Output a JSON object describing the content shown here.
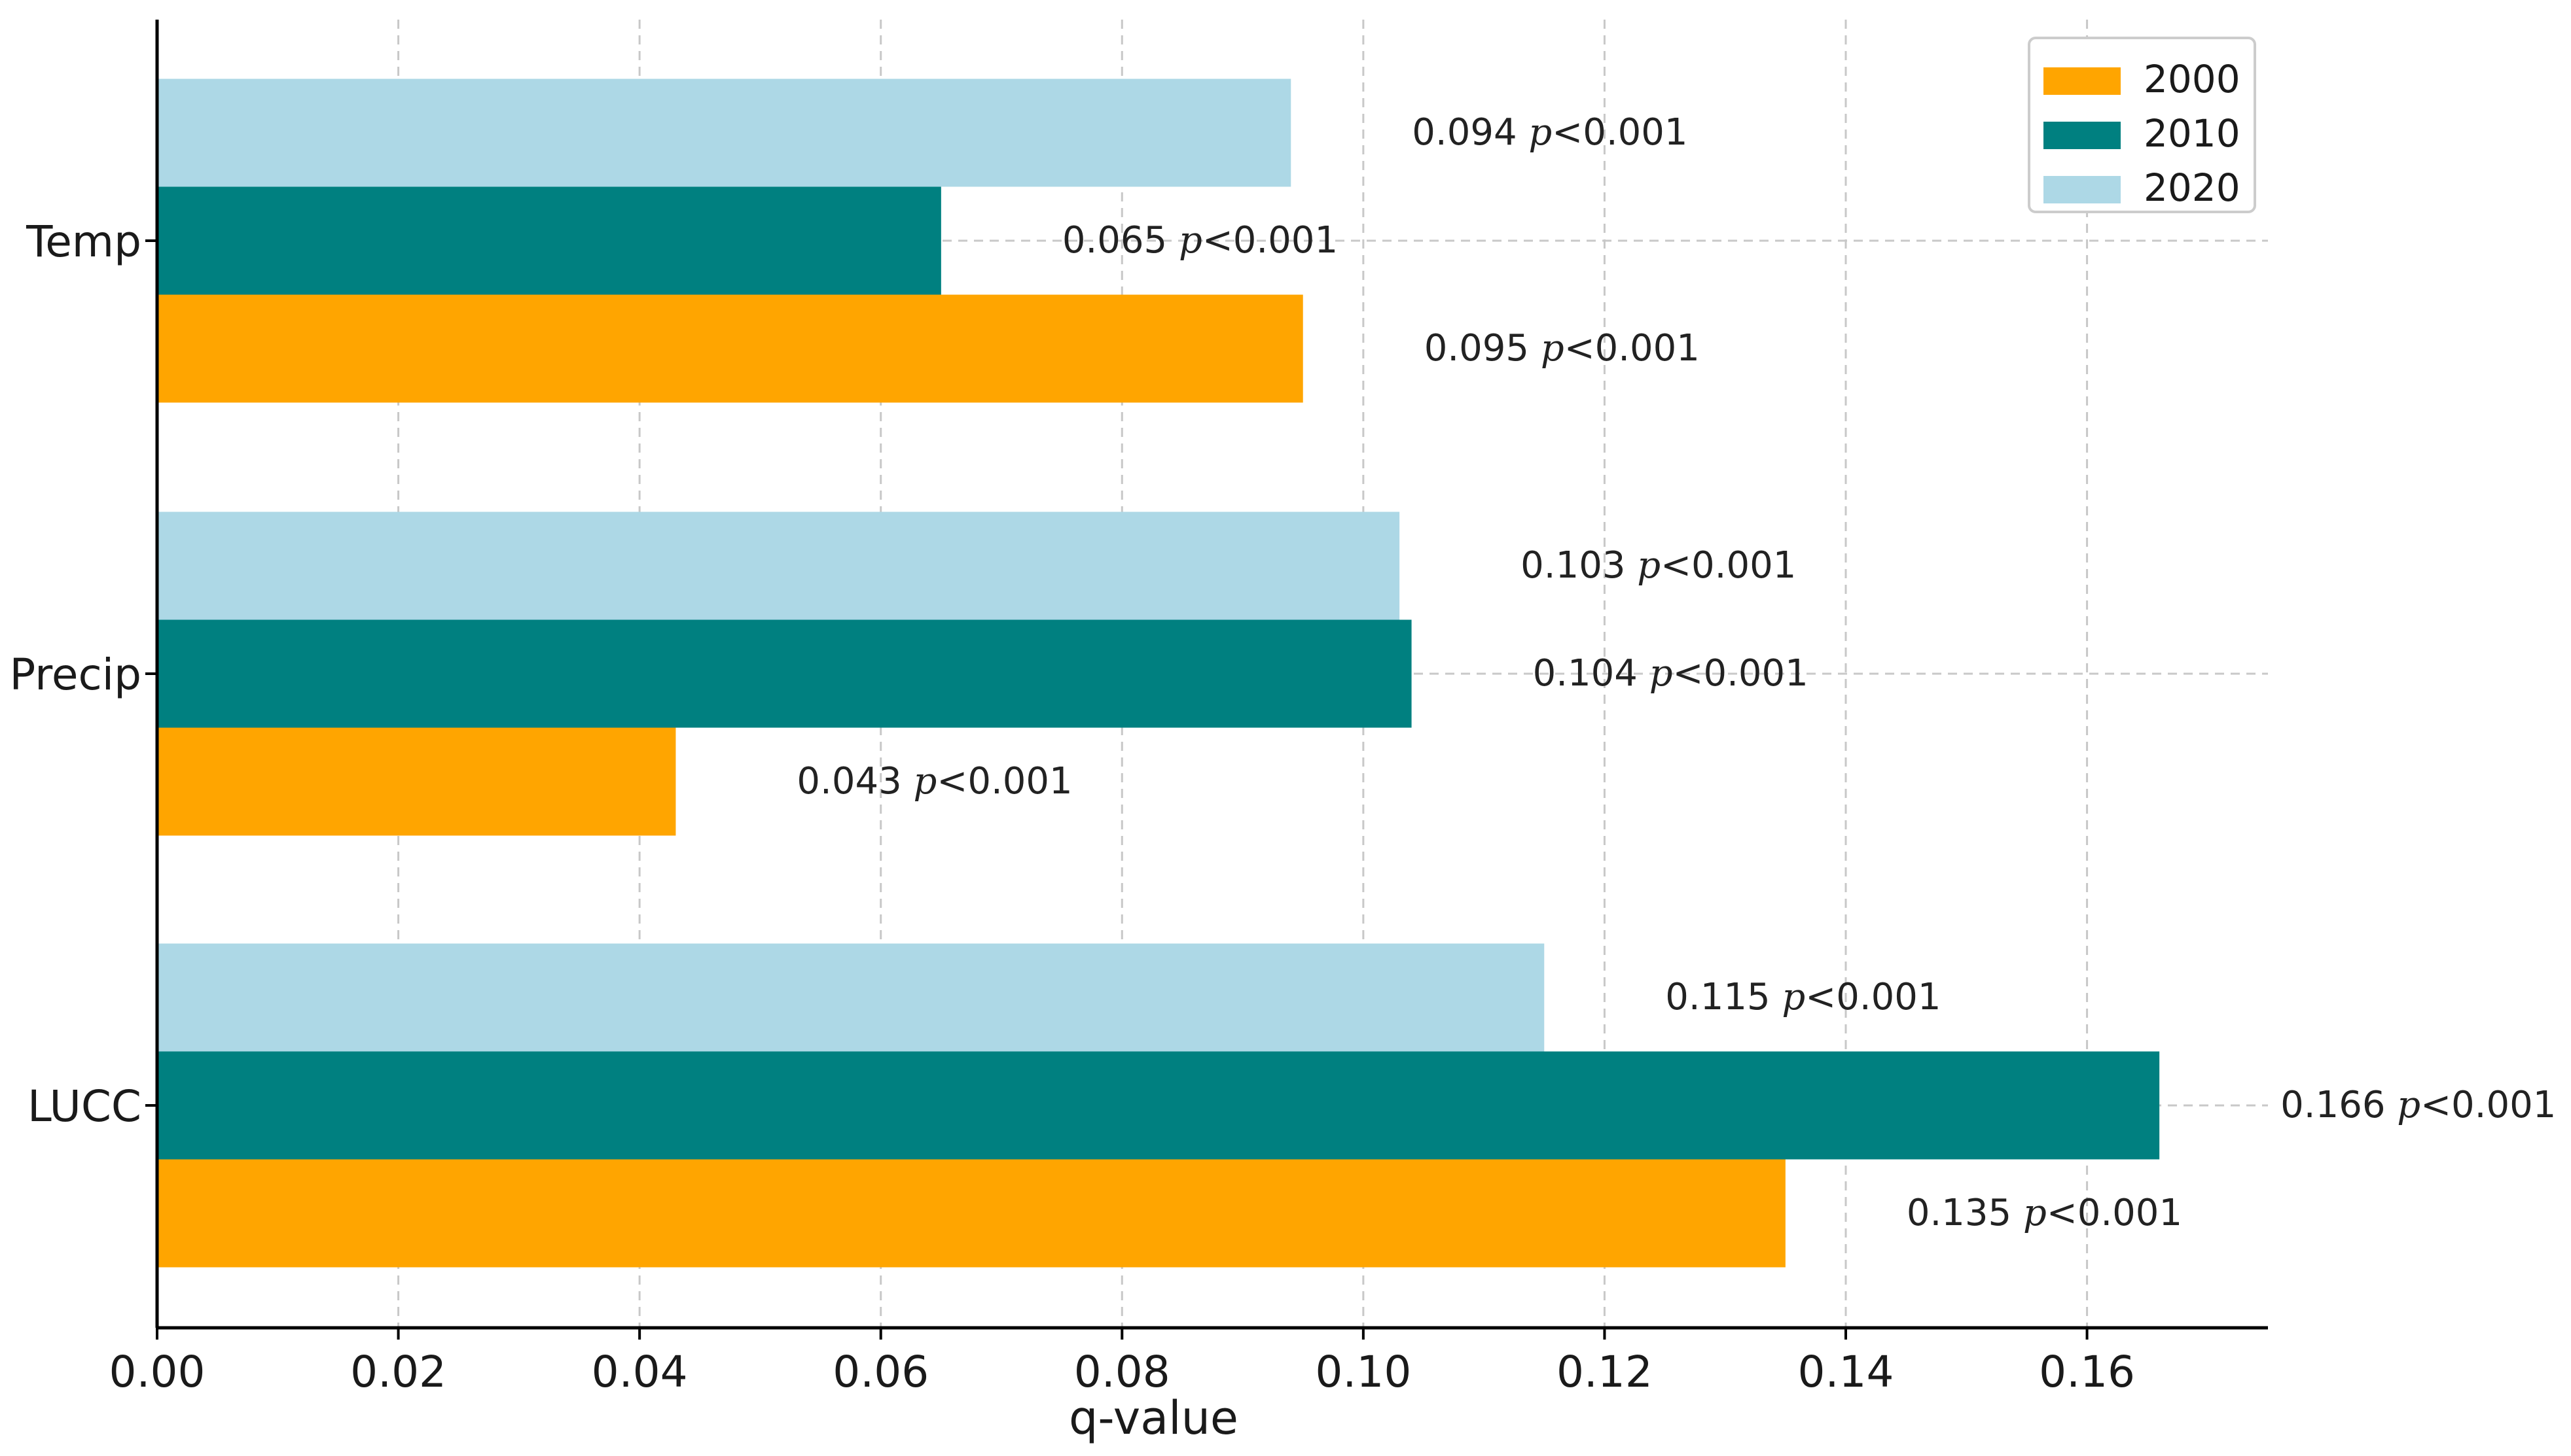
{
  "chart_data": {
    "type": "bar",
    "orientation": "horizontal",
    "title": "",
    "xlabel": "q-value",
    "ylabel": "",
    "xlim": [
      0,
      0.175
    ],
    "xticks": [
      "0.00",
      "0.02",
      "0.04",
      "0.06",
      "0.08",
      "0.10",
      "0.12",
      "0.14",
      "0.16"
    ],
    "xtick_values": [
      0,
      0.02,
      0.04,
      0.06,
      0.08,
      0.1,
      0.12,
      0.14,
      0.16
    ],
    "categories": [
      "Temp",
      "Precip",
      "LUCC"
    ],
    "grid": true,
    "legend_position": "top-right",
    "series": [
      {
        "name": "2000",
        "color": "#FFA500",
        "values": [
          0.095,
          0.043,
          0.135
        ],
        "labels": [
          "0.095",
          "0.043",
          "0.135"
        ],
        "sig": [
          "p<0.001",
          "p<0.001",
          "p<0.001"
        ]
      },
      {
        "name": "2010",
        "color": "#008080",
        "values": [
          0.065,
          0.104,
          0.166
        ],
        "labels": [
          "0.065",
          "0.104",
          "0.166"
        ],
        "sig": [
          "p<0.001",
          "p<0.001",
          "p<0.001"
        ]
      },
      {
        "name": "2020",
        "color": "#ADD8E6",
        "values": [
          0.094,
          0.103,
          0.115
        ],
        "labels": [
          "0.094",
          "0.103",
          "0.115"
        ],
        "sig": [
          "p<0.001",
          "p<0.001",
          "p<0.001"
        ]
      }
    ]
  }
}
